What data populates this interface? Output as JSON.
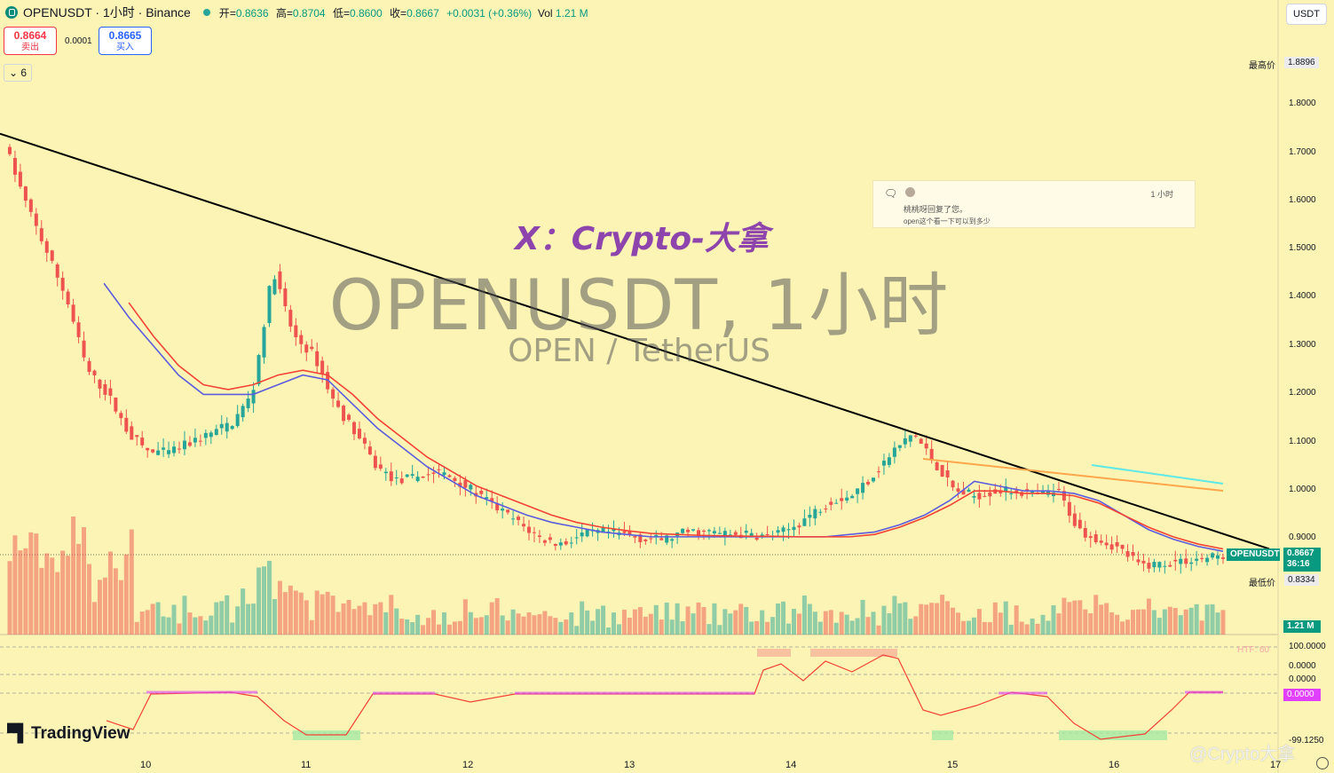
{
  "header": {
    "symbol_title": "OPENUSDT · 1小时 · Binance",
    "ohlc": [
      {
        "k": "开",
        "v": "0.8636"
      },
      {
        "k": "高",
        "v": "0.8704"
      },
      {
        "k": "低",
        "v": "0.8600"
      },
      {
        "k": "收",
        "v": "0.8667"
      }
    ],
    "change": "+0.0031 (+0.36%)",
    "vol_label": "Vol",
    "vol_value": "1.21 M"
  },
  "trade": {
    "sell_price": "0.8664",
    "sell_label": "卖出",
    "spread": "0.0001",
    "buy_price": "0.8665",
    "buy_label": "买入"
  },
  "lots_toggle": "6",
  "currency": "USDT",
  "watermark": {
    "title": "OPENUSDT, 1小时",
    "subtitle": "OPEN / TetherUS"
  },
  "overlay_title": "X：Crypto-大拿",
  "notification": {
    "time": "1 小时",
    "line1": "桃桃呀回复了您。",
    "line2": "open这个看一下可以到多少"
  },
  "price_axis": {
    "labels": [
      "1.8000",
      "1.7000",
      "1.6000",
      "1.5000",
      "1.4000",
      "1.3000",
      "1.2000",
      "1.1000",
      "1.0000",
      "0.9000"
    ],
    "high_label": "最高价",
    "high_value": "1.8896",
    "low_label": "最低价",
    "low_value": "0.8334",
    "symbol_tag": "OPENUSDT",
    "last_price": "0.8667",
    "countdown": "36:16",
    "volume_tag": "1.21 M"
  },
  "osc_axis": {
    "l100": "100.0000",
    "l0a": "0.0000",
    "l0b": "0.0000",
    "l0c": "0.0000",
    "lneg": "-99.1250",
    "htf": "HTF: 60"
  },
  "time_axis": [
    "10",
    "11",
    "12",
    "13",
    "14",
    "15",
    "16",
    "17"
  ],
  "branding": {
    "tradingview": "TradingView",
    "watermark_right": "@Crypto大拿"
  },
  "colors": {
    "up": "#26a69a",
    "down": "#ef5350",
    "background": "#fbf4b4",
    "ema_fast": "#5b5ce0",
    "ema_slow": "#f44336",
    "trendline": "#000000",
    "orange_line": "#ffa64d",
    "cyan_line": "#5ee8e8",
    "osc_line": "#f44336",
    "osc_pink": "#e040fb"
  },
  "chart_data": {
    "type": "candlestick",
    "symbol": "OPENUSDT",
    "interval": "1小时",
    "exchange": "Binance",
    "x_days": [
      "10",
      "11",
      "12",
      "13",
      "14",
      "15",
      "16",
      "17"
    ],
    "ylim": [
      0.83,
      1.89
    ],
    "high": 1.8896,
    "low": 0.8334,
    "last": 0.8667,
    "close_path": [
      1.72,
      1.6,
      1.5,
      1.4,
      1.25,
      1.2,
      1.12,
      1.08,
      1.08,
      1.1,
      1.12,
      1.14,
      1.2,
      1.46,
      1.32,
      1.28,
      1.18,
      1.12,
      1.05,
      1.02,
      1.03,
      1.04,
      1.02,
      0.99,
      0.96,
      0.93,
      0.9,
      0.89,
      0.91,
      0.915,
      0.91,
      0.9,
      0.9,
      0.915,
      0.915,
      0.91,
      0.91,
      0.905,
      0.92,
      0.95,
      0.98,
      0.99,
      1.03,
      1.08,
      1.12,
      1.06,
      1.0,
      0.99,
      1.0,
      1.0,
      0.99,
      1.0,
      0.92,
      0.9,
      0.88,
      0.845,
      0.85,
      0.855,
      0.86,
      0.8667
    ],
    "ema_fast_path": [
      null,
      null,
      null,
      null,
      1.43,
      1.36,
      1.3,
      1.24,
      1.2,
      1.2,
      1.2,
      1.22,
      1.24,
      1.23,
      1.18,
      1.13,
      1.09,
      1.05,
      1.02,
      0.99,
      0.97,
      0.95,
      0.935,
      0.925,
      0.915,
      0.91,
      0.905,
      0.905,
      0.905,
      0.905,
      0.905,
      0.905,
      0.905,
      0.905,
      0.91,
      0.915,
      0.93,
      0.95,
      0.98,
      1.02,
      1.01,
      1.0,
      1.0,
      0.995,
      0.98,
      0.95,
      0.92,
      0.9,
      0.885,
      0.875
    ],
    "ema_slow_path": [
      null,
      null,
      null,
      null,
      null,
      1.39,
      1.32,
      1.26,
      1.22,
      1.21,
      1.22,
      1.24,
      1.25,
      1.24,
      1.2,
      1.15,
      1.11,
      1.07,
      1.04,
      1.01,
      0.99,
      0.97,
      0.95,
      0.935,
      0.925,
      0.918,
      0.912,
      0.91,
      0.908,
      0.907,
      0.906,
      0.906,
      0.905,
      0.905,
      0.905,
      0.91,
      0.925,
      0.945,
      0.97,
      1.0,
      1.0,
      0.995,
      0.995,
      0.99,
      0.975,
      0.95,
      0.925,
      0.905,
      0.89,
      0.88
    ],
    "trendline": [
      [
        1.74,
        "start"
      ],
      [
        0.88,
        "end"
      ]
    ]
  }
}
